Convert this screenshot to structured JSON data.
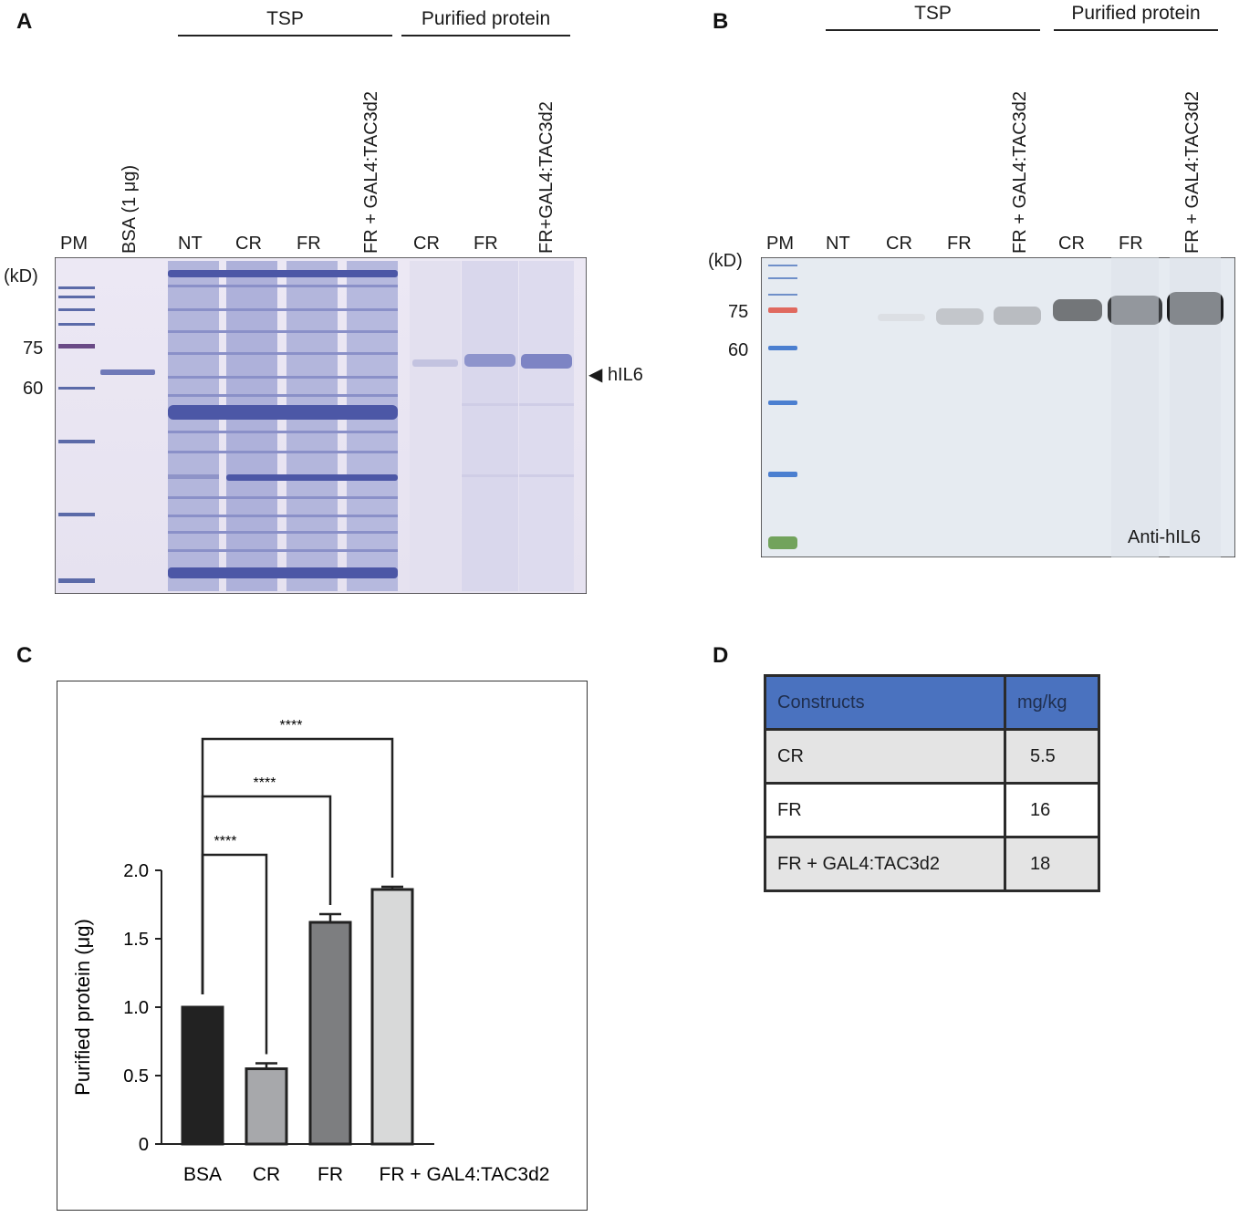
{
  "panels": {
    "a": "A",
    "b": "B",
    "c": "C",
    "d": "D"
  },
  "panel_a": {
    "group_tsp": "TSP",
    "group_purified": "Purified protein",
    "lanes": [
      "PM",
      "BSA (1 μg)",
      "NT",
      "CR",
      "FR",
      "FR + GAL4:TAC3d2",
      "CR",
      "FR",
      "FR+GAL4:TAC3d2"
    ],
    "unit": "(kD)",
    "mw_markers": [
      "75",
      "60"
    ],
    "band_label": "◀  hIL6"
  },
  "panel_b": {
    "group_tsp": "TSP",
    "group_purified": "Purified protein",
    "lanes": [
      "PM",
      "NT",
      "CR",
      "FR",
      "FR + GAL4:TAC3d2",
      "CR",
      "FR",
      "FR + GAL4:TAC3d2"
    ],
    "unit": "(kD)",
    "mw_markers": [
      "75",
      "60"
    ],
    "antibody": "Anti-hIL6"
  },
  "chart_data": {
    "type": "bar",
    "categories": [
      "BSA",
      "CR",
      "FR",
      "FR + GAL4:TAC3d2"
    ],
    "values": [
      1.0,
      0.55,
      1.62,
      1.86
    ],
    "errors": [
      0.0,
      0.04,
      0.06,
      0.02
    ],
    "ylabel": "Purified protein (μg)",
    "ylim": [
      0,
      2.0
    ],
    "yticks": [
      "0",
      "0.5",
      "1.0",
      "1.5",
      "2.0"
    ],
    "colors": [
      "#222222",
      "#a7a8ab",
      "#7d7e80",
      "#d8d9d9"
    ],
    "significance": [
      {
        "from": "BSA",
        "to": "CR",
        "label": "****"
      },
      {
        "from": "BSA",
        "to": "FR",
        "label": "****"
      },
      {
        "from": "BSA",
        "to": "FR + GAL4:TAC3d2",
        "label": "****"
      }
    ]
  },
  "table_d": {
    "headers": [
      "Constructs",
      "mg/kg"
    ],
    "rows": [
      {
        "construct": "CR",
        "value": "5.5"
      },
      {
        "construct": "FR",
        "value": "16"
      },
      {
        "construct": "FR + GAL4:TAC3d2",
        "value": "18"
      }
    ],
    "header_color": "#4a72bf"
  }
}
